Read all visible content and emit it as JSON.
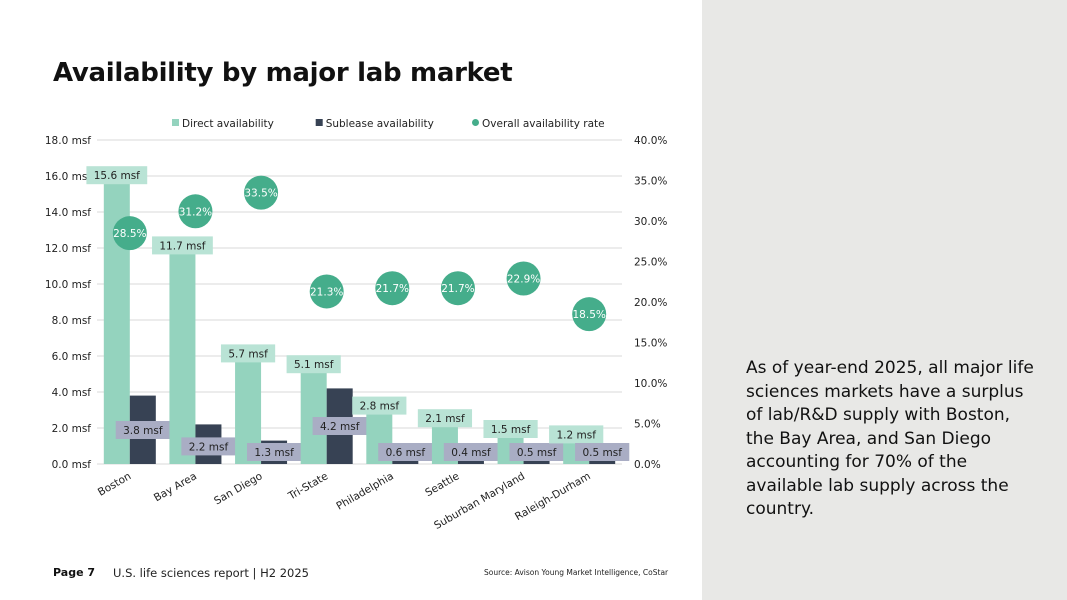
{
  "page": {
    "title": "Availability by major lab market",
    "page_number": "Page 7",
    "report_name": "U.S. life sciences report | H2 2025",
    "source": "Source: Avison Young Market Intelligence, CoStar",
    "side_text": "As of year-end 2025, all major life sciences markets have a surplus of lab/R&D supply with Boston, the Bay Area, and San Diego accounting for 70% of the available lab supply across the country."
  },
  "chart_data": {
    "type": "bar",
    "categories": [
      "Boston",
      "Bay Area",
      "San Diego",
      "Tri-State",
      "Philadelphia",
      "Seattle",
      "Suburban Maryland",
      "Raleigh-Durham"
    ],
    "series": [
      {
        "name": "Direct availability",
        "type": "bar",
        "axis": "left",
        "color": "#94d3be",
        "label_bg": "#b9e3d5",
        "values": [
          15.6,
          11.7,
          5.7,
          5.1,
          2.8,
          2.1,
          1.5,
          1.2
        ],
        "labels": [
          "15.6 msf",
          "11.7 msf",
          "5.7 msf",
          "5.1 msf",
          "2.8 msf",
          "2.1 msf",
          "1.5 msf",
          "1.2 msf"
        ]
      },
      {
        "name": "Sublease availability",
        "type": "bar",
        "axis": "left",
        "color": "#374254",
        "label_bg": "#a9adc4",
        "values": [
          3.8,
          2.2,
          1.3,
          4.2,
          0.6,
          0.4,
          0.5,
          0.5
        ],
        "labels": [
          "3.8 msf",
          "2.2 msf",
          "1.3 msf",
          "4.2 msf",
          "0.6 msf",
          "0.4 msf",
          "0.5 msf",
          "0.5 msf"
        ]
      },
      {
        "name": "Overall availability rate",
        "type": "scatter",
        "axis": "right",
        "color": "#45ad8b",
        "values": [
          28.5,
          31.2,
          33.5,
          21.3,
          21.7,
          21.7,
          22.9,
          18.5
        ],
        "labels": [
          "28.5%",
          "31.2%",
          "33.5%",
          "21.3%",
          "21.7%",
          "21.7%",
          "22.9%",
          "18.5%"
        ]
      }
    ],
    "y_left": {
      "range": [
        0,
        18
      ],
      "ticks": [
        "0.0 msf",
        "2.0 msf",
        "4.0 msf",
        "6.0 msf",
        "8.0 msf",
        "10.0 msf",
        "12.0 msf",
        "14.0 msf",
        "16.0 msf",
        "18.0 msf"
      ]
    },
    "y_right": {
      "range": [
        0,
        40
      ],
      "ticks": [
        "0.0%",
        "5.0%",
        "10.0%",
        "15.0%",
        "20.0%",
        "25.0%",
        "30.0%",
        "35.0%",
        "40.0%"
      ]
    },
    "grid": true,
    "legend": "top"
  }
}
